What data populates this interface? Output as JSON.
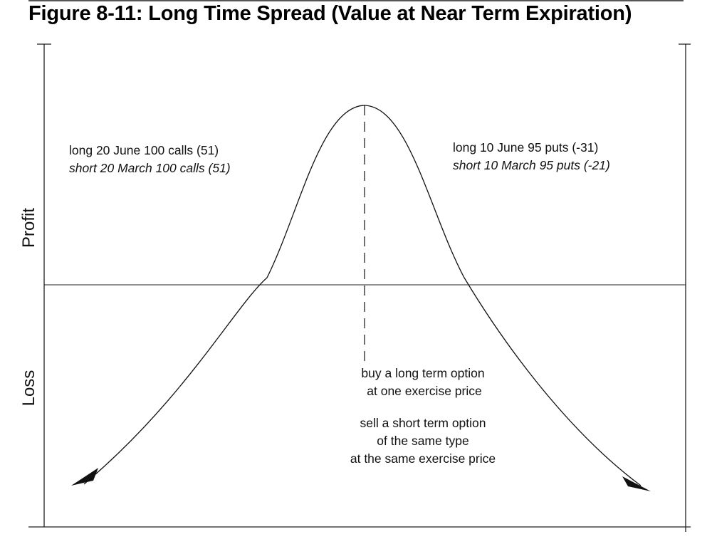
{
  "chart_data": {
    "type": "line",
    "title": "Figure 8-11: Long Time Spread (Value at Near Term Expiration)",
    "ylabel_upper": "Profit",
    "ylabel_lower": "Loss",
    "xlabel": "",
    "series": [
      {
        "shape": "peaked-curve",
        "peak_relative_position": 0.5,
        "zero_crossings_relative": [
          0.345,
          0.655
        ],
        "arrow_ends": [
          "left",
          "right"
        ]
      }
    ],
    "reference_lines": {
      "zero_line": "horizontal",
      "peak_line": "vertical-dashed"
    },
    "annotations": {
      "left": [
        {
          "text": "long 20 June 100 calls (51)",
          "italic": false
        },
        {
          "text": "short 20 March 100 calls (51)",
          "italic": true
        }
      ],
      "right": [
        {
          "text": "long 10 June 95 puts (-31)",
          "italic": false
        },
        {
          "text": "short 10 March 95 puts (-21)",
          "italic": true
        }
      ],
      "center_buy": [
        "buy a long term option",
        "at one exercise price"
      ],
      "center_sell": [
        "sell a short term option",
        "of the same type",
        "at the same exercise price"
      ]
    },
    "grid": false,
    "legend": "none",
    "colors": {
      "line": "#111111",
      "frame": "#222222"
    }
  }
}
